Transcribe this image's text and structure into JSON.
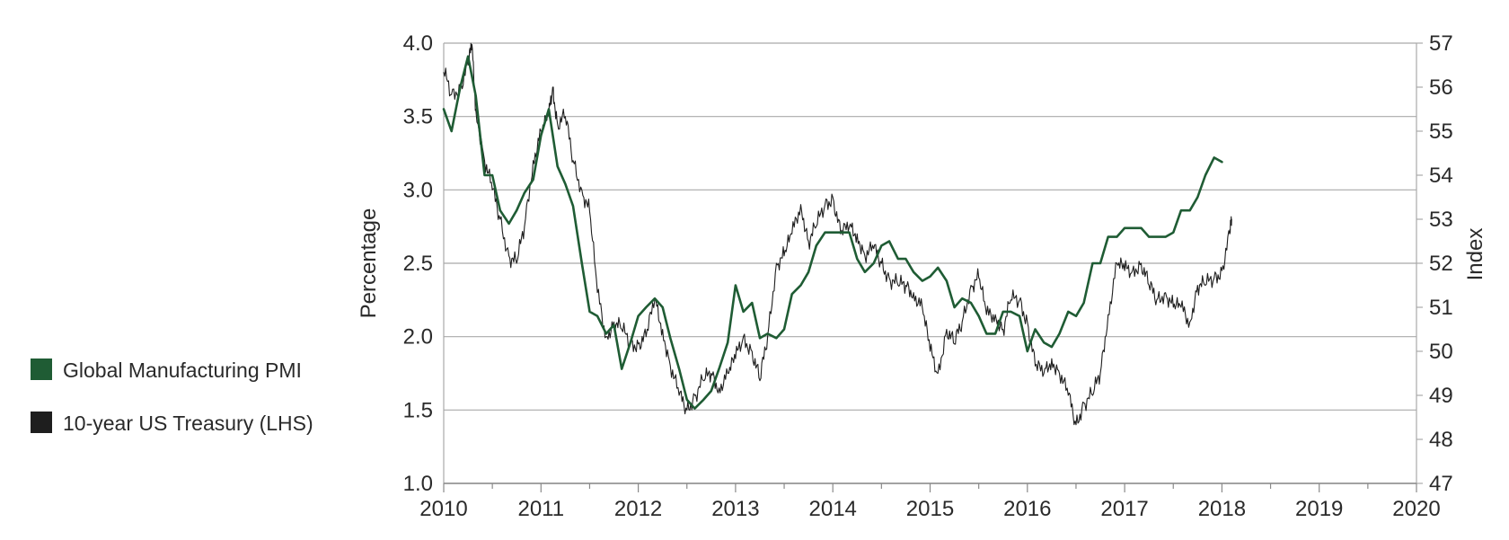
{
  "chart_data": {
    "type": "line",
    "title": "",
    "xlabel": "",
    "ylabel_left": "Percentage",
    "ylabel_right": "Index",
    "xlim": [
      2010,
      2020
    ],
    "ylim_left": [
      1.0,
      4.0
    ],
    "ylim_right": [
      47,
      57
    ],
    "x_ticks": [
      "2010",
      "2011",
      "2012",
      "2013",
      "2014",
      "2015",
      "2016",
      "2017",
      "2018",
      "2019",
      "2020"
    ],
    "y_ticks_left": [
      "1.0",
      "1.5",
      "2.0",
      "2.5",
      "3.0",
      "3.5",
      "4.0"
    ],
    "y_ticks_right": [
      "47",
      "48",
      "49",
      "50",
      "51",
      "52",
      "53",
      "54",
      "55",
      "56",
      "57"
    ],
    "grid": "horizontal",
    "legend_position": "left",
    "series": [
      {
        "name": "Global Manufacturing PMI",
        "axis": "right",
        "color": "#1f5c34",
        "x": [
          2010.0,
          2010.08,
          2010.17,
          2010.25,
          2010.33,
          2010.42,
          2010.5,
          2010.58,
          2010.67,
          2010.75,
          2010.83,
          2010.92,
          2011.0,
          2011.08,
          2011.17,
          2011.25,
          2011.33,
          2011.42,
          2011.5,
          2011.58,
          2011.67,
          2011.75,
          2011.83,
          2011.92,
          2012.0,
          2012.08,
          2012.17,
          2012.25,
          2012.33,
          2012.42,
          2012.5,
          2012.58,
          2012.67,
          2012.75,
          2012.83,
          2012.92,
          2013.0,
          2013.08,
          2013.17,
          2013.25,
          2013.33,
          2013.42,
          2013.5,
          2013.58,
          2013.67,
          2013.75,
          2013.83,
          2013.92,
          2014.0,
          2014.08,
          2014.17,
          2014.25,
          2014.33,
          2014.42,
          2014.5,
          2014.58,
          2014.67,
          2014.75,
          2014.83,
          2014.92,
          2015.0,
          2015.08,
          2015.17,
          2015.25,
          2015.33,
          2015.42,
          2015.5,
          2015.58,
          2015.67,
          2015.75,
          2015.83,
          2015.92,
          2016.0,
          2016.08,
          2016.17,
          2016.25,
          2016.33,
          2016.42,
          2016.5,
          2016.58,
          2016.67,
          2016.75,
          2016.83,
          2016.92,
          2017.0,
          2017.08,
          2017.17,
          2017.25,
          2017.33,
          2017.42,
          2017.5,
          2017.58,
          2017.67,
          2017.75,
          2017.83,
          2017.92,
          2018.0
        ],
        "values": [
          55.5,
          55.0,
          56.0,
          56.7,
          55.8,
          54.0,
          54.0,
          53.2,
          52.9,
          53.2,
          53.6,
          53.9,
          54.9,
          55.5,
          54.2,
          53.8,
          53.3,
          52.0,
          50.9,
          50.8,
          50.4,
          50.6,
          49.6,
          50.2,
          50.8,
          51.0,
          51.2,
          51.0,
          50.3,
          49.6,
          48.9,
          48.7,
          48.9,
          49.1,
          49.6,
          50.2,
          51.5,
          50.9,
          51.1,
          50.3,
          50.4,
          50.3,
          50.5,
          51.3,
          51.5,
          51.8,
          52.4,
          52.7,
          52.7,
          52.7,
          52.7,
          52.1,
          51.8,
          52.0,
          52.4,
          52.5,
          52.1,
          52.1,
          51.8,
          51.6,
          51.7,
          51.9,
          51.6,
          51.0,
          51.2,
          51.1,
          50.8,
          50.4,
          50.4,
          50.9,
          50.9,
          50.8,
          50.0,
          50.5,
          50.2,
          50.1,
          50.4,
          50.9,
          50.8,
          51.1,
          52.0,
          52.0,
          52.6,
          52.6,
          52.8,
          52.8,
          52.8,
          52.6,
          52.6,
          52.6,
          52.7,
          53.2,
          53.2,
          53.5,
          54.0,
          54.4,
          54.3
        ]
      },
      {
        "name": "10-year US Treasury (LHS)",
        "axis": "left",
        "color": "#1e1e1e",
        "x": [
          2010.0,
          2010.08,
          2010.17,
          2010.25,
          2010.29,
          2010.33,
          2010.42,
          2010.5,
          2010.58,
          2010.67,
          2010.75,
          2010.83,
          2010.92,
          2011.0,
          2011.08,
          2011.12,
          2011.17,
          2011.25,
          2011.33,
          2011.42,
          2011.5,
          2011.58,
          2011.67,
          2011.75,
          2011.83,
          2011.92,
          2012.0,
          2012.08,
          2012.17,
          2012.25,
          2012.33,
          2012.42,
          2012.5,
          2012.58,
          2012.67,
          2012.75,
          2012.83,
          2012.92,
          2013.0,
          2013.08,
          2013.17,
          2013.25,
          2013.33,
          2013.42,
          2013.5,
          2013.58,
          2013.67,
          2013.75,
          2013.83,
          2013.92,
          2014.0,
          2014.08,
          2014.17,
          2014.25,
          2014.33,
          2014.42,
          2014.5,
          2014.58,
          2014.67,
          2014.75,
          2014.83,
          2014.92,
          2015.0,
          2015.08,
          2015.17,
          2015.25,
          2015.33,
          2015.42,
          2015.5,
          2015.58,
          2015.67,
          2015.75,
          2015.83,
          2015.92,
          2016.0,
          2016.08,
          2016.17,
          2016.25,
          2016.33,
          2016.42,
          2016.5,
          2016.58,
          2016.67,
          2016.75,
          2016.83,
          2016.92,
          2017.0,
          2017.08,
          2017.17,
          2017.25,
          2017.33,
          2017.42,
          2017.5,
          2017.58,
          2017.67,
          2017.75,
          2017.83,
          2017.92,
          2018.0,
          2018.08,
          2018.1
        ],
        "values": [
          3.8,
          3.65,
          3.7,
          3.85,
          3.99,
          3.55,
          3.2,
          3.0,
          2.8,
          2.55,
          2.5,
          2.75,
          3.2,
          3.4,
          3.5,
          3.7,
          3.45,
          3.5,
          3.2,
          3.0,
          2.85,
          2.3,
          2.0,
          2.1,
          2.05,
          1.95,
          1.95,
          2.0,
          2.25,
          2.05,
          1.8,
          1.6,
          1.5,
          1.6,
          1.7,
          1.75,
          1.65,
          1.75,
          1.85,
          2.0,
          1.9,
          1.7,
          2.0,
          2.5,
          2.55,
          2.7,
          2.9,
          2.65,
          2.75,
          2.9,
          2.95,
          2.7,
          2.75,
          2.7,
          2.55,
          2.6,
          2.5,
          2.4,
          2.35,
          2.35,
          2.3,
          2.2,
          1.9,
          1.75,
          2.05,
          1.95,
          2.1,
          2.35,
          2.4,
          2.15,
          2.15,
          2.05,
          2.25,
          2.25,
          2.1,
          1.8,
          1.75,
          1.85,
          1.75,
          1.6,
          1.4,
          1.55,
          1.6,
          1.75,
          2.15,
          2.5,
          2.45,
          2.45,
          2.5,
          2.35,
          2.25,
          2.3,
          2.2,
          2.2,
          2.1,
          2.35,
          2.35,
          2.4,
          2.45,
          2.7,
          2.8
        ]
      }
    ]
  }
}
